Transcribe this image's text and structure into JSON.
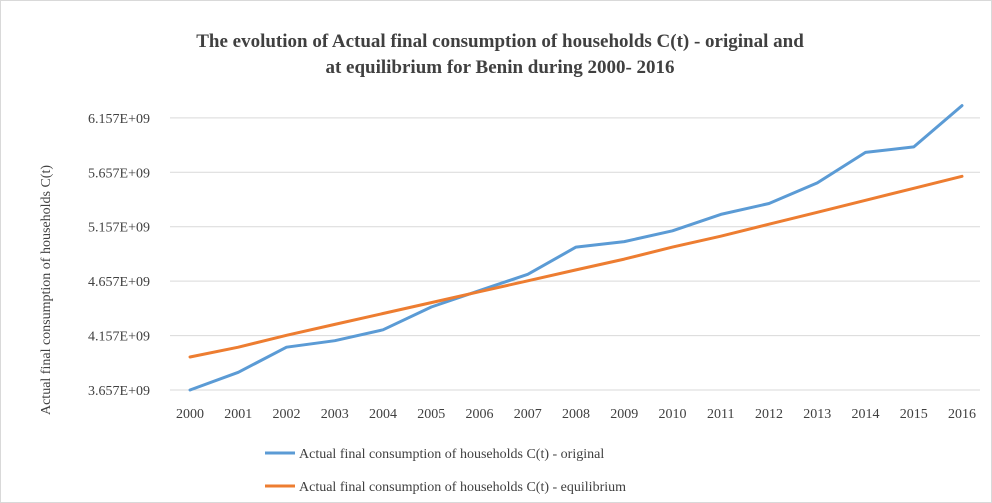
{
  "chart_data": {
    "type": "line",
    "title_line1": "The evolution of Actual  final  consumption  of households C(t) - original  and",
    "title_line2": "at equilibrium  for Benin during   2000- 2016",
    "ylabel": "Actual final consumption of households C(t)",
    "xlabel": "",
    "categories": [
      "2000",
      "2001",
      "2002",
      "2003",
      "2004",
      "2005",
      "2006",
      "2007",
      "2008",
      "2009",
      "2010",
      "2011",
      "2012",
      "2013",
      "2014",
      "2015",
      "2016"
    ],
    "y_ticks": [
      3657000000.0,
      4157000000.0,
      4657000000.0,
      5157000000.0,
      5657000000.0,
      6157000000.0
    ],
    "y_tick_labels": [
      "3.657E+09",
      "4.157E+09",
      "4.657E+09",
      "5.157E+09",
      "5.657E+09",
      "6.157E+09"
    ],
    "ylim": [
      3657000000.0,
      6257000000.0
    ],
    "grid": true,
    "legend_position": "bottom",
    "series": [
      {
        "name": "Actual final consumption of households C(t) - original",
        "color": "#5b9bd5",
        "values": [
          3657000000.0,
          3820000000.0,
          4050000000.0,
          4110000000.0,
          4210000000.0,
          4420000000.0,
          4570000000.0,
          4720000000.0,
          4970000000.0,
          5020000000.0,
          5120000000.0,
          5270000000.0,
          5370000000.0,
          5560000000.0,
          5840000000.0,
          5890000000.0,
          6270000000.0
        ]
      },
      {
        "name": "Actual final consumption of households C(t) - equilibrium",
        "color": "#ed7d31",
        "values": [
          3960000000.0,
          4050000000.0,
          4160000000.0,
          4260000000.0,
          4360000000.0,
          4460000000.0,
          4560000000.0,
          4660000000.0,
          4760000000.0,
          4860000000.0,
          4970000000.0,
          5070000000.0,
          5180000000.0,
          5290000000.0,
          5400000000.0,
          5510000000.0,
          5620000000.0
        ]
      }
    ]
  }
}
